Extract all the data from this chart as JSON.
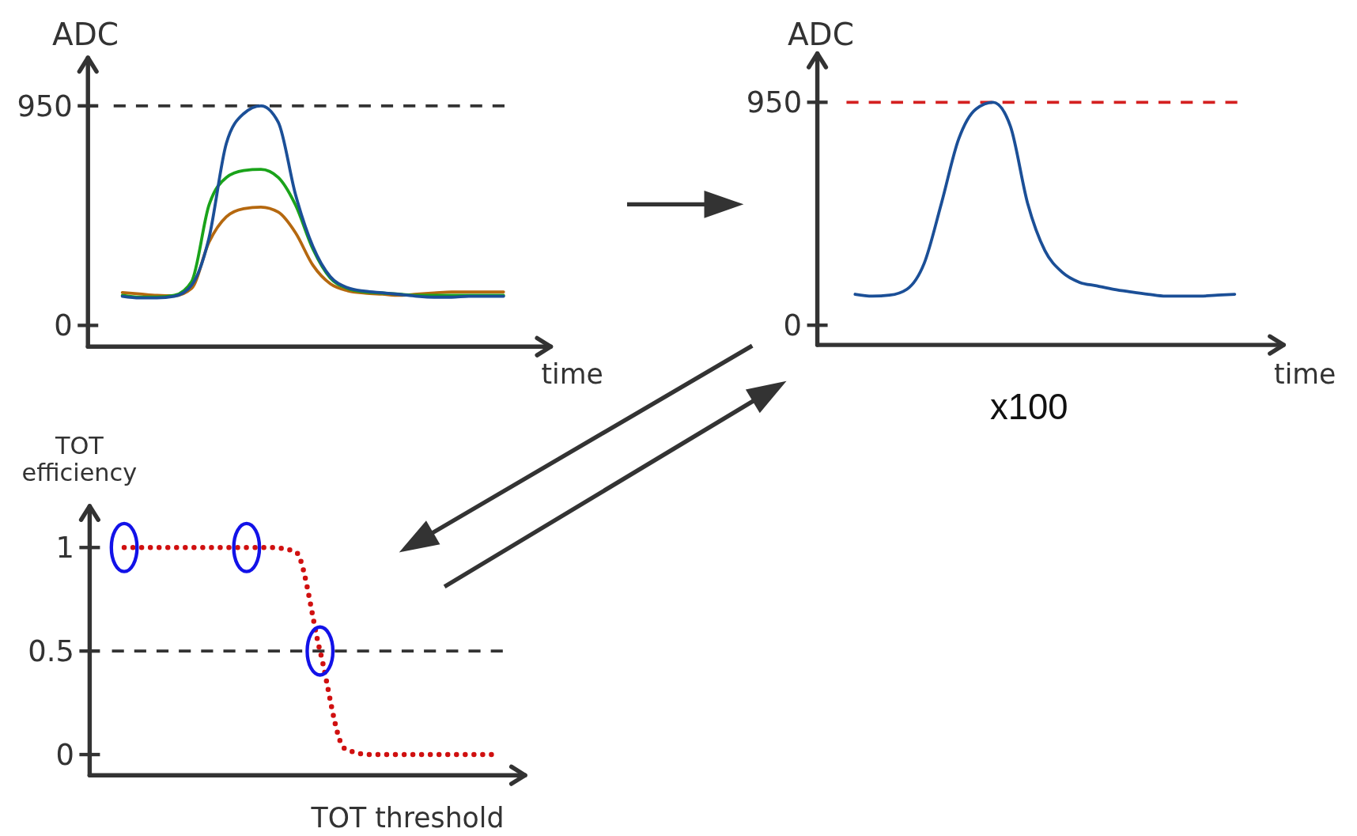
{
  "chart_data": [
    {
      "type": "line",
      "ylabel": "ADC",
      "xlabel": "time",
      "categories": [
        null,
        null,
        null,
        null,
        null,
        null,
        null,
        null,
        null,
        null,
        null,
        null,
        null,
        null,
        null,
        null,
        null,
        null,
        null,
        null,
        null,
        null,
        null
      ],
      "ylim": [
        -92,
        1158
      ],
      "yticks": [
        0,
        950
      ],
      "grid": false,
      "series": [
        {
          "color": "#b5680f",
          "values": [
            142,
            136,
            130,
            128,
            160,
            360,
            470,
            505,
            512,
            490,
            400,
            260,
            180,
            150,
            140,
            135,
            130,
            135,
            140,
            145,
            145,
            145,
            145
          ]
        },
        {
          "color": "#1aa31a",
          "values": [
            130,
            122,
            122,
            130,
            190,
            520,
            640,
            670,
            675,
            640,
            520,
            330,
            205,
            160,
            145,
            140,
            135,
            130,
            130,
            130,
            130,
            130,
            130
          ]
        },
        {
          "color": "#1b4f97",
          "values": [
            126,
            119,
            119,
            126,
            174,
            378,
            787,
            916,
            950,
            879,
            564,
            341,
            211,
            163,
            148,
            141,
            134,
            126,
            122,
            122,
            126,
            126,
            126
          ]
        }
      ],
      "ref_lines": [
        {
          "axis": "y",
          "value": 950,
          "color": "#333333",
          "line_style": "dashed"
        }
      ]
    },
    {
      "type": "line",
      "ylabel": "ADC",
      "xlabel": "time",
      "categories": [
        null,
        null,
        null,
        null,
        null,
        null,
        null,
        null,
        null,
        null,
        null,
        null,
        null,
        null,
        null,
        null,
        null,
        null,
        null,
        null,
        null,
        null,
        null
      ],
      "ylim": [
        -84,
        1158
      ],
      "yticks": [
        0,
        950
      ],
      "grid": false,
      "series": [
        {
          "color": "#1b4f97",
          "values": [
            132,
            124,
            128,
            153,
            263,
            519,
            793,
            921,
            950,
            848,
            519,
            318,
            226,
            183,
            168,
            153,
            142,
            132,
            124,
            124,
            124,
            128,
            132
          ]
        }
      ],
      "ref_lines": [
        {
          "axis": "y",
          "value": 950,
          "color": "#d42020",
          "line_style": "dashed"
        }
      ],
      "annotations": [
        "x100"
      ]
    },
    {
      "type": "line",
      "ylabel": "TOT efficiency",
      "xlabel": "TOT threshold",
      "categories": [
        null,
        null,
        null,
        null,
        null,
        null,
        null,
        null,
        null,
        null,
        null,
        null,
        null,
        null,
        null,
        null
      ],
      "ylim": [
        -0.1,
        1.2
      ],
      "yticks": [
        0,
        0.5,
        1
      ],
      "grid": false,
      "series": [
        {
          "color": "#d01010",
          "line_style": "dotted",
          "values": [
            1,
            1,
            1,
            1,
            1,
            1,
            1,
            0.98,
            0.5,
            0.03,
            0,
            0,
            0,
            0,
            0,
            0
          ]
        }
      ],
      "ref_lines": [
        {
          "axis": "y",
          "value": 0.5,
          "color": "#333333",
          "line_style": "dashed"
        }
      ]
    }
  ]
}
